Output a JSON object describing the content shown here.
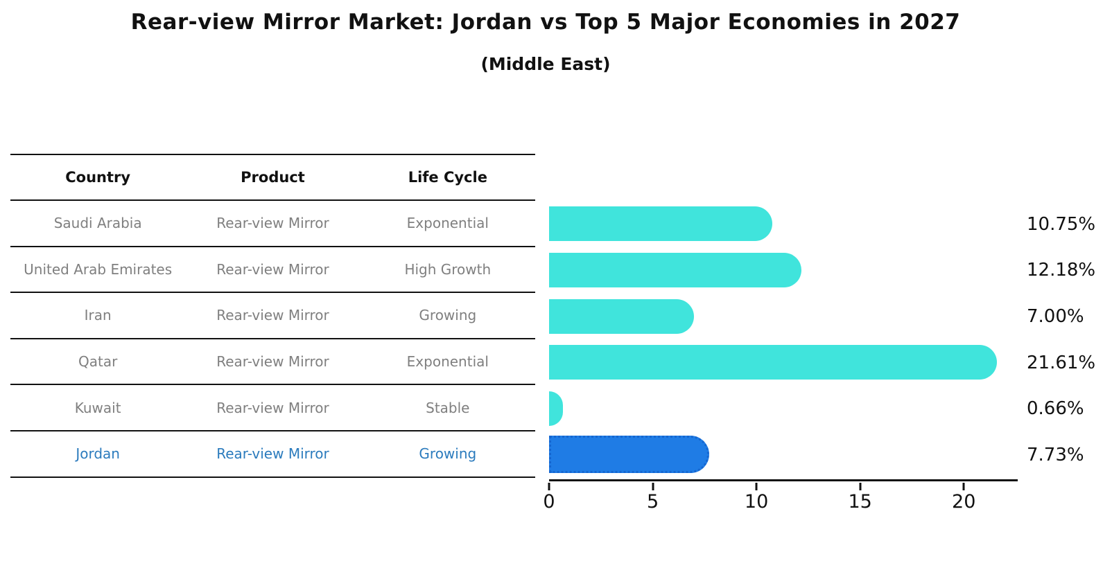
{
  "title": "Rear-view Mirror Market: Jordan vs Top 5 Major Economies in 2027",
  "subtitle": "(Middle East)",
  "table": {
    "headers": [
      "Country",
      "Product",
      "Life Cycle"
    ],
    "rows": [
      {
        "country": "Saudi Arabia",
        "product": "Rear-view Mirror",
        "life_cycle": "Exponential"
      },
      {
        "country": "United Arab Emirates",
        "product": "Rear-view Mirror",
        "life_cycle": "High Growth"
      },
      {
        "country": "Iran",
        "product": "Rear-view Mirror",
        "life_cycle": "Growing"
      },
      {
        "country": "Qatar",
        "product": "Rear-view Mirror",
        "life_cycle": "Exponential"
      },
      {
        "country": "Kuwait",
        "product": "Rear-view Mirror",
        "life_cycle": "Stable"
      },
      {
        "country": "Jordan",
        "product": "Rear-view Mirror",
        "life_cycle": "Growing"
      }
    ]
  },
  "chart_data": {
    "type": "bar",
    "orientation": "horizontal",
    "title": "Rear-view Mirror Market: Jordan vs Top 5 Major Economies in 2027",
    "subtitle": "(Middle East)",
    "categories": [
      "Saudi Arabia",
      "United Arab Emirates",
      "Iran",
      "Qatar",
      "Kuwait",
      "Jordan"
    ],
    "values": [
      10.75,
      12.18,
      7.0,
      21.61,
      0.66,
      7.73
    ],
    "value_labels": [
      "10.75%",
      "12.18%",
      "7.00%",
      "21.61%",
      "0.66%",
      "7.73%"
    ],
    "unit": "%",
    "highlight_category": "Jordan",
    "xticks": [
      0,
      5,
      10,
      15,
      20
    ],
    "xlim": [
      0,
      22.6
    ],
    "xlabel": "",
    "ylabel": "",
    "grid": false,
    "legend": false
  },
  "colors": {
    "bar": "#40e4dc",
    "highlight_bar": "#1f7ce5",
    "highlight_border": "#1566d0",
    "highlight_text": "#2b7bbd",
    "row_text": "#7f7f7f",
    "line": "#111111",
    "label_text": "#111111"
  }
}
